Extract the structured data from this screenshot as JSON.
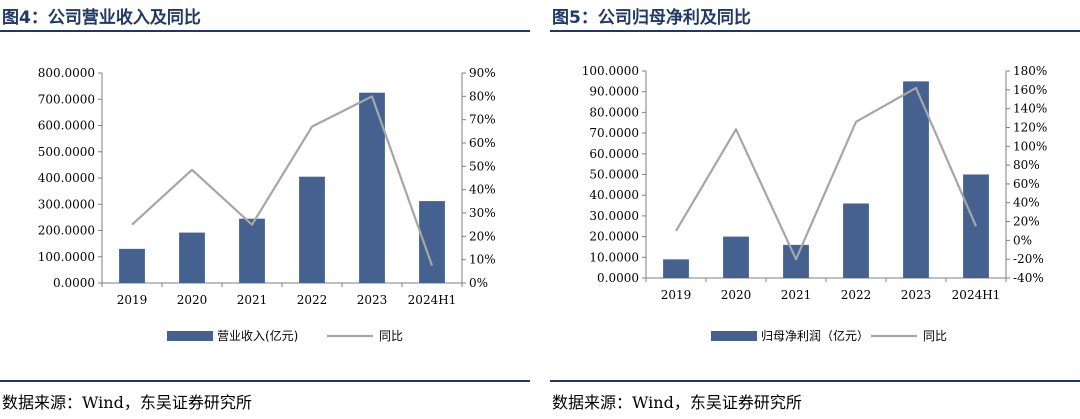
{
  "colors": {
    "bar": "#44618f",
    "line": "#a6a6a6",
    "title": "#1f3864",
    "axis": "#7f7f7f"
  },
  "charts": [
    {
      "title": "图4：公司营业收入及同比",
      "source": "数据来源：Wind，东吴证券研究所",
      "legend": {
        "bar_label": "营业收入(亿元)",
        "line_label": "同比"
      }
    },
    {
      "title": "图5：公司归母净利及同比",
      "source": "数据来源：Wind，东吴证券研究所",
      "legend": {
        "bar_label": "归母净利润（亿元）",
        "line_label": "同比"
      }
    }
  ],
  "chart_data": [
    {
      "type": "bar",
      "categories": [
        "2019",
        "2020",
        "2021",
        "2022",
        "2023",
        "2024H1"
      ],
      "series": [
        {
          "name": "营业收入(亿元)",
          "type": "bar",
          "axis": "left",
          "values": [
            130,
            192,
            245,
            405,
            725,
            312
          ]
        },
        {
          "name": "同比",
          "type": "line",
          "axis": "right",
          "values": [
            25,
            48.5,
            25,
            67,
            80,
            7.5
          ]
        }
      ],
      "ylim_left": [
        0,
        800
      ],
      "ylim_right": [
        0,
        90
      ],
      "yticks_left": [
        "0.0000",
        "100.0000",
        "200.0000",
        "300.0000",
        "400.0000",
        "500.0000",
        "600.0000",
        "700.0000",
        "800.0000"
      ],
      "yticks_right": [
        "0%",
        "10%",
        "20%",
        "30%",
        "40%",
        "50%",
        "60%",
        "70%",
        "80%",
        "90%"
      ],
      "legend_position": "bottom"
    },
    {
      "type": "bar",
      "categories": [
        "2019",
        "2020",
        "2021",
        "2022",
        "2023",
        "2024H1"
      ],
      "series": [
        {
          "name": "归母净利润（亿元）",
          "type": "bar",
          "axis": "left",
          "values": [
            9,
            20,
            16,
            36,
            95,
            50
          ]
        },
        {
          "name": "同比",
          "type": "line",
          "axis": "right",
          "values": [
            10,
            118,
            -20,
            126,
            162,
            15
          ]
        }
      ],
      "ylim_left": [
        0,
        100
      ],
      "ylim_right": [
        -40,
        180
      ],
      "yticks_left": [
        "0.0000",
        "10.0000",
        "20.0000",
        "30.0000",
        "40.0000",
        "50.0000",
        "60.0000",
        "70.0000",
        "80.0000",
        "90.0000",
        "100.0000"
      ],
      "yticks_right": [
        "-40%",
        "-20%",
        "0%",
        "20%",
        "40%",
        "60%",
        "80%",
        "100%",
        "120%",
        "140%",
        "160%",
        "180%"
      ],
      "legend_position": "bottom"
    }
  ]
}
